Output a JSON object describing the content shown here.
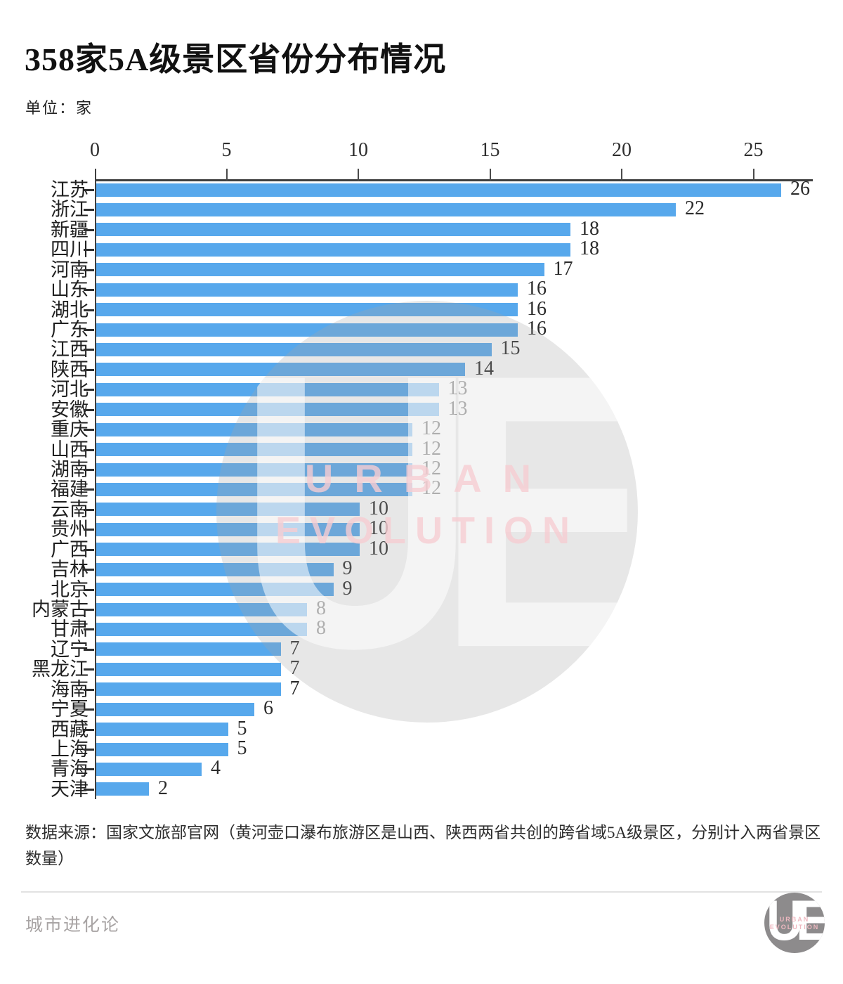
{
  "title": "358家5A级景区省份分布情况",
  "unit_label": "单位：家",
  "chart_data": {
    "type": "bar",
    "orientation": "horizontal",
    "title": "358家5A级景区省份分布情况",
    "unit": "家",
    "categories": [
      "江苏",
      "浙江",
      "新疆",
      "四川",
      "河南",
      "山东",
      "湖北",
      "广东",
      "江西",
      "陕西",
      "河北",
      "安徽",
      "重庆",
      "山西",
      "湖南",
      "福建",
      "云南",
      "贵州",
      "广西",
      "吉林",
      "北京",
      "内蒙古",
      "甘肃",
      "辽宁",
      "黑龙江",
      "海南",
      "宁夏",
      "西藏",
      "上海",
      "青海",
      "天津"
    ],
    "values": [
      26,
      22,
      18,
      18,
      17,
      16,
      16,
      16,
      15,
      14,
      13,
      13,
      12,
      12,
      12,
      12,
      10,
      10,
      10,
      9,
      9,
      8,
      8,
      7,
      7,
      7,
      6,
      5,
      5,
      4,
      2
    ],
    "x_ticks": [
      0,
      5,
      10,
      15,
      20,
      25
    ],
    "xlim": [
      0,
      27.3
    ],
    "grid": false,
    "legend": "none",
    "bar_color": "#57a8ec"
  },
  "watermark": {
    "monogram": "UE",
    "line1": "URBAN",
    "line2": "EVOLUTION"
  },
  "source_note": "数据来源：国家文旅部官网（黄河壶口瀑布旅游区是山西、陕西两省共创的跨省域5A级景区，分别计入两省景区数量）",
  "footer": {
    "brand": "城市进化论",
    "logo_monogram": "UE",
    "logo_line1": "URBAN",
    "logo_line2": "EVOLUTION"
  }
}
